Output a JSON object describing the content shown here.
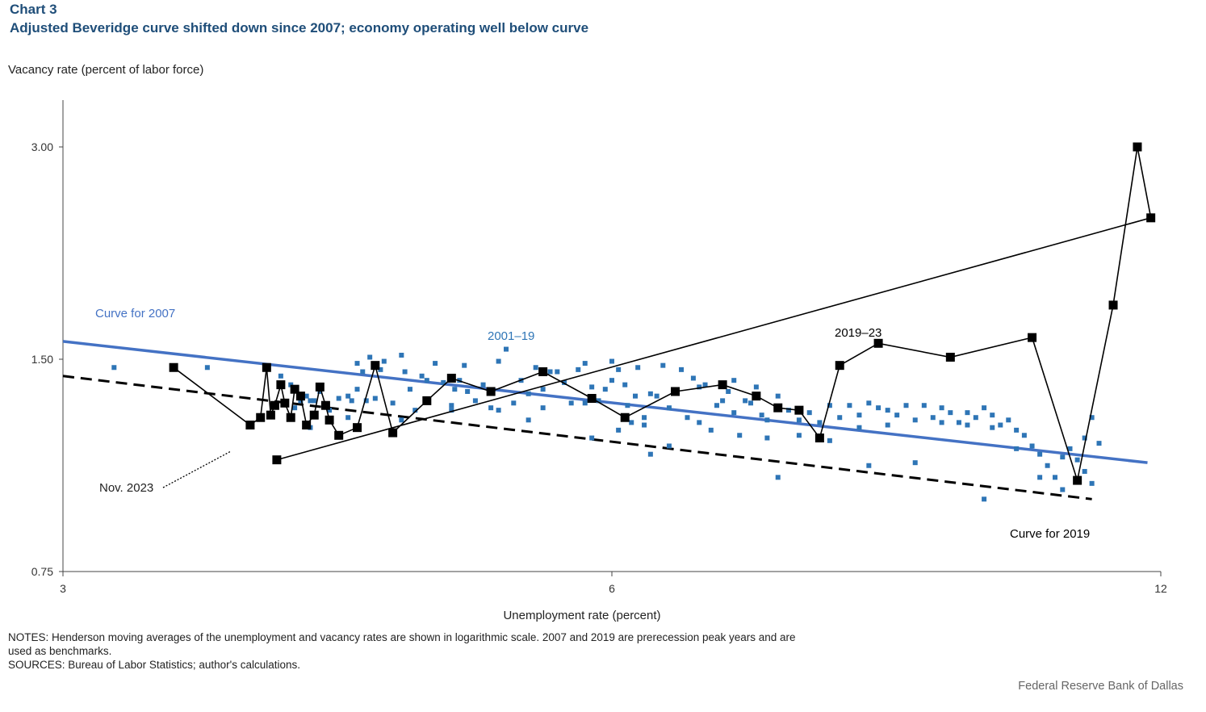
{
  "header": {
    "chart_number": "Chart 3",
    "title": "Adjusted Beveridge curve shifted down since 2007; economy operating well below curve"
  },
  "notes": {
    "notes_line": "NOTES: Henderson moving averages of the unemployment and vacancy rates are shown in logarithmic scale. 2007 and 2019 are prerecession peak years and are used as benchmarks.",
    "sources_line": "SOURCES: Bureau of Labor Statistics; author's calculations."
  },
  "credit": "Federal Reserve Bank of Dallas",
  "colors": {
    "title": "#1f4e79",
    "blue_series": "#2e75b6",
    "curve_2007": "#4472c4",
    "black_series": "#000000"
  },
  "chart_data": {
    "type": "scatter",
    "xscale": "log",
    "yscale": "log",
    "xlabel": "Unemployment  rate (percent)",
    "ylabel": "Vacancy rate (percent of labor force)",
    "xlim": [
      3,
      12
    ],
    "ylim": [
      0.75,
      3.4
    ],
    "xticks": [
      3,
      6,
      12
    ],
    "xtick_labels": [
      "3",
      "6",
      "12"
    ],
    "yticks": [
      0.75,
      1.5,
      3.0
    ],
    "ytick_labels": [
      "0.75",
      "1.50",
      "3.00"
    ],
    "annotations": {
      "curve_2007": "Curve for 2007",
      "curve_2019": "Curve for 2019",
      "series_2001_19": "2001–19",
      "series_2019_23": "2019–23",
      "nov_2023": "Nov. 2023"
    },
    "curve_2007_endpoints": [
      [
        3.0,
        1.59
      ],
      [
        11.8,
        1.07
      ]
    ],
    "curve_2019_endpoints": [
      [
        3.0,
        1.42
      ],
      [
        11.0,
        0.95
      ]
    ],
    "series_2001_19": [
      [
        3.2,
        1.46
      ],
      [
        3.45,
        1.46
      ],
      [
        3.6,
        1.46
      ],
      [
        3.95,
        1.42
      ],
      [
        4.0,
        1.38
      ],
      [
        4.02,
        1.28
      ],
      [
        4.05,
        1.31
      ],
      [
        4.08,
        1.33
      ],
      [
        4.1,
        1.31
      ],
      [
        4.12,
        1.31
      ],
      [
        4.15,
        1.35
      ],
      [
        4.2,
        1.27
      ],
      [
        4.25,
        1.32
      ],
      [
        4.3,
        1.33
      ],
      [
        4.32,
        1.31
      ],
      [
        4.35,
        1.36
      ],
      [
        4.35,
        1.48
      ],
      [
        4.38,
        1.44
      ],
      [
        4.4,
        1.31
      ],
      [
        4.42,
        1.51
      ],
      [
        4.45,
        1.32
      ],
      [
        4.48,
        1.45
      ],
      [
        4.5,
        1.49
      ],
      [
        4.55,
        1.3
      ],
      [
        4.6,
        1.52
      ],
      [
        4.62,
        1.44
      ],
      [
        4.65,
        1.36
      ],
      [
        4.68,
        1.27
      ],
      [
        4.72,
        1.42
      ],
      [
        4.75,
        1.4
      ],
      [
        4.8,
        1.48
      ],
      [
        4.85,
        1.39
      ],
      [
        4.9,
        1.29
      ],
      [
        4.92,
        1.36
      ],
      [
        4.95,
        1.4
      ],
      [
        4.98,
        1.47
      ],
      [
        5.0,
        1.35
      ],
      [
        5.05,
        1.31
      ],
      [
        5.1,
        1.38
      ],
      [
        5.15,
        1.28
      ],
      [
        5.2,
        1.49
      ],
      [
        5.25,
        1.55
      ],
      [
        5.3,
        1.3
      ],
      [
        5.35,
        1.4
      ],
      [
        5.4,
        1.34
      ],
      [
        5.45,
        1.46
      ],
      [
        5.5,
        1.36
      ],
      [
        5.55,
        1.44
      ],
      [
        5.6,
        1.44
      ],
      [
        5.65,
        1.39
      ],
      [
        5.7,
        1.3
      ],
      [
        5.75,
        1.45
      ],
      [
        5.8,
        1.48
      ],
      [
        5.85,
        1.37
      ],
      [
        5.9,
        1.31
      ],
      [
        5.95,
        1.36
      ],
      [
        6.0,
        1.4
      ],
      [
        6.0,
        1.49
      ],
      [
        6.05,
        1.45
      ],
      [
        6.1,
        1.38
      ],
      [
        6.12,
        1.29
      ],
      [
        6.15,
        1.22
      ],
      [
        6.18,
        1.33
      ],
      [
        6.2,
        1.46
      ],
      [
        6.25,
        1.24
      ],
      [
        6.3,
        1.34
      ],
      [
        6.35,
        1.33
      ],
      [
        6.4,
        1.47
      ],
      [
        6.45,
        1.28
      ],
      [
        6.5,
        1.35
      ],
      [
        6.55,
        1.45
      ],
      [
        6.6,
        1.24
      ],
      [
        6.65,
        1.41
      ],
      [
        6.7,
        1.37
      ],
      [
        6.75,
        1.38
      ],
      [
        6.8,
        1.19
      ],
      [
        6.85,
        1.29
      ],
      [
        6.9,
        1.31
      ],
      [
        6.95,
        1.35
      ],
      [
        7.0,
        1.4
      ],
      [
        7.05,
        1.17
      ],
      [
        7.1,
        1.31
      ],
      [
        7.15,
        1.3
      ],
      [
        7.2,
        1.37
      ],
      [
        7.25,
        1.25
      ],
      [
        7.3,
        1.23
      ],
      [
        7.4,
        1.33
      ],
      [
        7.5,
        1.27
      ],
      [
        7.6,
        1.23
      ],
      [
        7.7,
        1.26
      ],
      [
        7.8,
        1.22
      ],
      [
        7.9,
        1.29
      ],
      [
        8.0,
        1.24
      ],
      [
        8.1,
        1.29
      ],
      [
        8.2,
        1.25
      ],
      [
        8.3,
        1.3
      ],
      [
        8.4,
        1.28
      ],
      [
        8.5,
        1.27
      ],
      [
        8.6,
        1.25
      ],
      [
        8.7,
        1.29
      ],
      [
        8.8,
        1.23
      ],
      [
        8.9,
        1.29
      ],
      [
        9.0,
        1.24
      ],
      [
        9.1,
        1.28
      ],
      [
        9.2,
        1.26
      ],
      [
        9.3,
        1.22
      ],
      [
        9.4,
        1.26
      ],
      [
        9.5,
        1.24
      ],
      [
        9.6,
        1.28
      ],
      [
        9.7,
        1.25
      ],
      [
        9.8,
        1.21
      ],
      [
        9.9,
        1.23
      ],
      [
        10.0,
        1.19
      ],
      [
        10.1,
        1.17
      ],
      [
        10.2,
        1.13
      ],
      [
        10.3,
        1.1
      ],
      [
        10.4,
        1.06
      ],
      [
        10.5,
        1.02
      ],
      [
        10.6,
        0.98
      ],
      [
        10.7,
        1.12
      ],
      [
        10.8,
        1.08
      ],
      [
        10.9,
        1.04
      ],
      [
        11.0,
        1.0
      ],
      [
        11.1,
        1.14
      ],
      [
        4.1,
        1.2
      ],
      [
        4.3,
        1.24
      ],
      [
        4.6,
        1.23
      ],
      [
        4.9,
        1.27
      ],
      [
        5.2,
        1.27
      ],
      [
        5.5,
        1.28
      ],
      [
        5.8,
        1.3
      ],
      [
        6.05,
        1.19
      ],
      [
        6.25,
        1.21
      ],
      [
        6.45,
        1.13
      ],
      [
        6.7,
        1.22
      ],
      [
        7.0,
        1.26
      ],
      [
        7.3,
        1.16
      ],
      [
        7.6,
        1.17
      ],
      [
        7.9,
        1.15
      ],
      [
        8.2,
        1.2
      ],
      [
        8.5,
        1.21
      ],
      [
        8.8,
        1.07
      ],
      [
        9.1,
        1.22
      ],
      [
        9.4,
        1.21
      ],
      [
        9.7,
        1.2
      ],
      [
        10.0,
        1.12
      ],
      [
        10.3,
        1.02
      ],
      [
        10.6,
        1.09
      ],
      [
        10.9,
        1.16
      ],
      [
        11.0,
        1.24
      ],
      [
        5.4,
        1.23
      ],
      [
        5.85,
        1.16
      ],
      [
        6.3,
        1.1
      ],
      [
        7.4,
        1.02
      ],
      [
        8.3,
        1.06
      ],
      [
        9.6,
        0.95
      ]
    ],
    "series_2019_23": [
      [
        3.45,
        1.46
      ],
      [
        3.8,
        1.21
      ],
      [
        3.85,
        1.24
      ],
      [
        3.88,
        1.46
      ],
      [
        3.9,
        1.25
      ],
      [
        3.92,
        1.29
      ],
      [
        3.95,
        1.38
      ],
      [
        3.97,
        1.3
      ],
      [
        4.0,
        1.24
      ],
      [
        4.02,
        1.36
      ],
      [
        4.05,
        1.33
      ],
      [
        4.08,
        1.21
      ],
      [
        4.12,
        1.25
      ],
      [
        4.15,
        1.37
      ],
      [
        4.18,
        1.29
      ],
      [
        4.2,
        1.23
      ],
      [
        4.25,
        1.17
      ],
      [
        4.35,
        1.2
      ],
      [
        4.45,
        1.47
      ],
      [
        4.55,
        1.18
      ],
      [
        4.75,
        1.31
      ],
      [
        4.9,
        1.41
      ],
      [
        5.15,
        1.35
      ],
      [
        5.5,
        1.44
      ],
      [
        5.85,
        1.32
      ],
      [
        6.1,
        1.24
      ],
      [
        6.5,
        1.35
      ],
      [
        6.9,
        1.38
      ],
      [
        7.2,
        1.33
      ],
      [
        7.4,
        1.28
      ],
      [
        7.6,
        1.27
      ],
      [
        7.8,
        1.16
      ],
      [
        8.0,
        1.47
      ],
      [
        8.4,
        1.58
      ],
      [
        9.2,
        1.51
      ],
      [
        10.2,
        1.61
      ],
      [
        10.8,
        1.01
      ],
      [
        11.3,
        1.79
      ],
      [
        11.65,
        3.0
      ],
      [
        11.85,
        2.38
      ],
      [
        3.93,
        1.08
      ]
    ],
    "series_2019_23_path_order": "chronological",
    "last_point_label": "Nov. 2023"
  }
}
